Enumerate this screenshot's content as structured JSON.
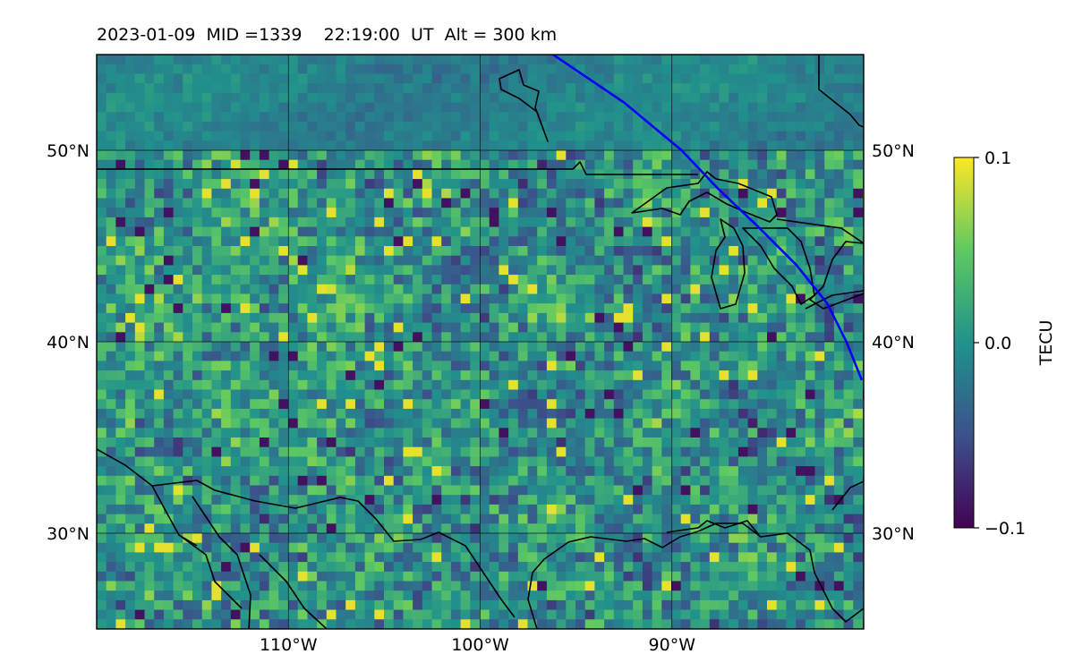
{
  "header": {
    "title": "2023-01-09  MID =1339    22:19:00  UT  Alt = 300 km"
  },
  "chart_data": {
    "type": "heatmap",
    "title": "2023-01-09  MID =1339    22:19:00  UT  Alt = 300 km",
    "xlim": [
      -120,
      -80
    ],
    "ylim": [
      25,
      55
    ],
    "x_ticks": [
      -110,
      -100,
      -90
    ],
    "x_tick_labels": [
      "110°W",
      "100°W",
      "90°W"
    ],
    "y_ticks": [
      30,
      40,
      50
    ],
    "y_tick_labels": [
      "30°N",
      "40°N",
      "50°N"
    ],
    "grid": true,
    "colormap": "viridis",
    "colorbar": {
      "label": "TECU",
      "vmin": -0.1,
      "vmax": 0.1,
      "ticks": [
        0.1,
        0.0,
        -0.1
      ],
      "tick_labels": [
        "0.1",
        "0.0",
        "−0.1"
      ],
      "placement": "right"
    },
    "satellite_track": {
      "color": "#0000ff",
      "points": [
        [
          -96.2,
          55
        ],
        [
          -92.5,
          52.5
        ],
        [
          -89.5,
          50
        ],
        [
          -87.6,
          48
        ],
        [
          -85.5,
          46
        ],
        [
          -83.5,
          44
        ],
        [
          -81.9,
          42
        ],
        [
          -80.9,
          40
        ],
        [
          -80.1,
          38
        ]
      ]
    },
    "colors": {
      "track": "#0000ff",
      "coastline": "#000000"
    }
  }
}
